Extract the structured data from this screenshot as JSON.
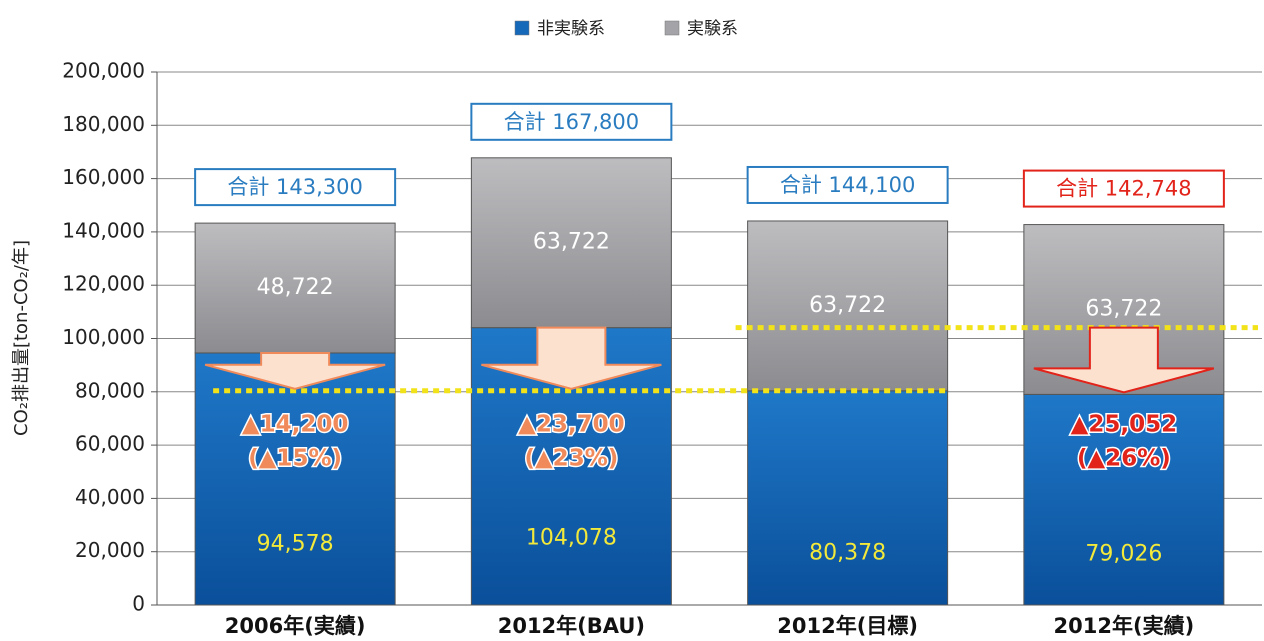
{
  "chart_data": {
    "type": "stacked-bar",
    "y_label": "CO₂排出量[ton-CO₂/年]",
    "categories": [
      "2006年(実績)",
      "2012年(BAU)",
      "2012年(目標)",
      "2012年(実績)"
    ],
    "series": [
      {
        "name": "非実験系",
        "color": "#1569b8",
        "values": [
          94578,
          104078,
          80378,
          79026
        ],
        "value_labels": [
          "94,578",
          "104,078",
          "80,378",
          "79,026"
        ]
      },
      {
        "name": "実験系",
        "color": "#a4a4a8",
        "values": [
          48722,
          63722,
          63722,
          63722
        ],
        "value_labels": [
          "48,722",
          "63,722",
          "63,722",
          "63,722"
        ]
      }
    ],
    "totals": [
      "合計 143,300",
      "合計 167,800",
      "合計 144,100",
      "合計 142,748"
    ],
    "reductions": [
      {
        "amount": "▲14,200",
        "percent": "(▲15%)"
      },
      {
        "amount": "▲23,700",
        "percent": "(▲23%)"
      },
      null,
      {
        "amount": "▲25,052",
        "percent": "(▲26%)"
      }
    ],
    "ylim": [
      0,
      200000
    ],
    "yticks": [
      0,
      {
        "value": 20000,
        "label": "20,000"
      },
      {
        "value": 40000,
        "label": "40,000"
      },
      {
        "value": 60000,
        "label": "60,000"
      },
      {
        "value": 80000,
        "label": "80,000"
      },
      {
        "value": 100000,
        "label": "100,000"
      },
      {
        "value": 120000,
        "label": "120,000"
      },
      {
        "value": 140000,
        "label": "140,000"
      },
      {
        "value": 160000,
        "label": "160,000"
      },
      {
        "value": 180000,
        "label": "180,000"
      },
      {
        "value": 200000,
        "label": "200,000"
      }
    ],
    "grid": true
  }
}
